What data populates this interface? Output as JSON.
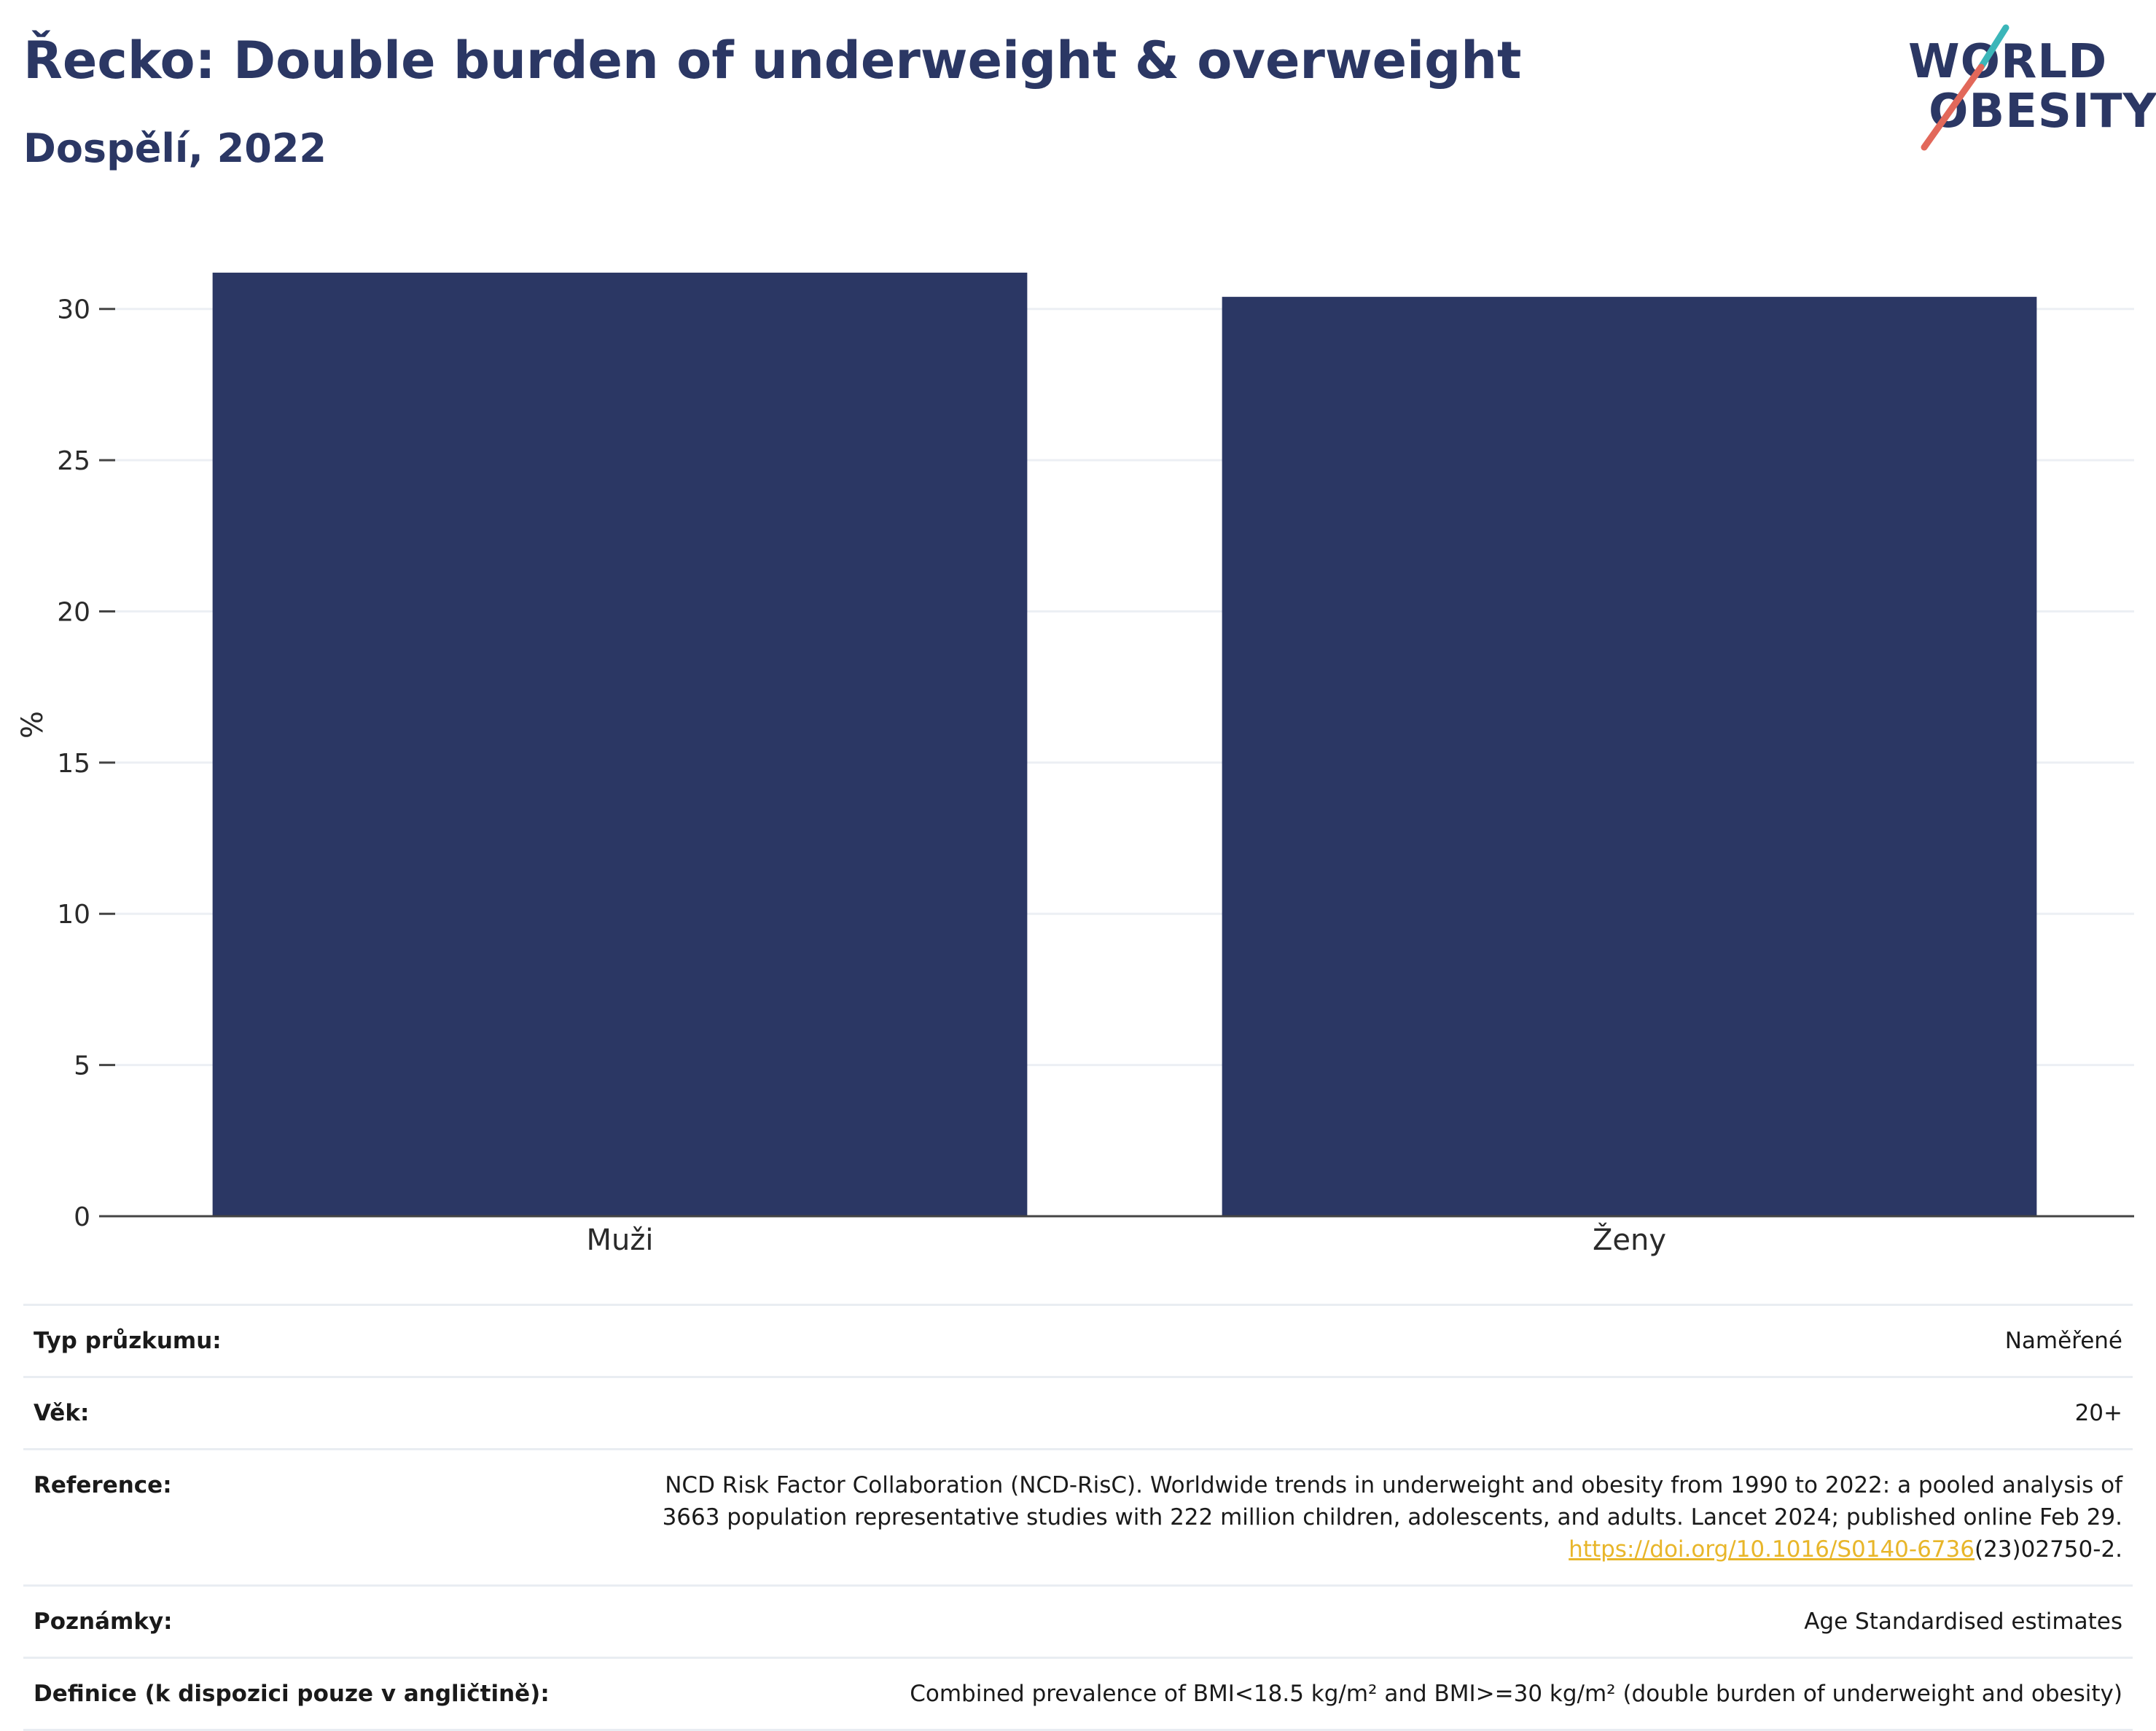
{
  "header": {
    "title": "Řecko: Double burden of underweight & overweight",
    "subtitle": "Dospělí, 2022"
  },
  "logo": {
    "line1": "WORLD",
    "line2": "OBESITY",
    "slash_colors": [
      "#3bb6b9",
      "#e2685a"
    ]
  },
  "colors": {
    "bar": "#2b3764",
    "grid": "#eceff4",
    "axis": "#444444"
  },
  "chart_data": {
    "type": "bar",
    "categories": [
      "Muži",
      "Ženy"
    ],
    "values": [
      31.2,
      30.4
    ],
    "title": "Řecko: Double burden of underweight & overweight",
    "subtitle": "Dospělí, 2022",
    "xlabel": "",
    "ylabel": "%",
    "ylim": [
      0,
      32.5
    ],
    "yticks": [
      0,
      5,
      10,
      15,
      20,
      25,
      30
    ],
    "grid": true,
    "legend": "none"
  },
  "meta": {
    "rows": [
      {
        "key": "Typ průzkumu:",
        "value": "Naměřené"
      },
      {
        "key": "Věk:",
        "value": "20+"
      },
      {
        "key": "Reference:",
        "line1": "NCD Risk Factor Collaboration (NCD-RisC). Worldwide trends in underweight and obesity from 1990 to 2022: a pooled analysis of",
        "line2": "3663 population representative studies with 222 million children, adolescents, and adults. Lancet 2024; published online Feb 29.",
        "link": "https://doi.org/10.1016/S0140-6736",
        "tail": "(23)02750-2."
      },
      {
        "key": "Poznámky:",
        "value": "Age Standardised estimates"
      },
      {
        "key": "Definice (k dispozici pouze v angličtině):",
        "value": "Combined prevalence of BMI<18.5 kg/m² and BMI>=30 kg/m² (double burden of underweight and obesity)"
      }
    ]
  }
}
